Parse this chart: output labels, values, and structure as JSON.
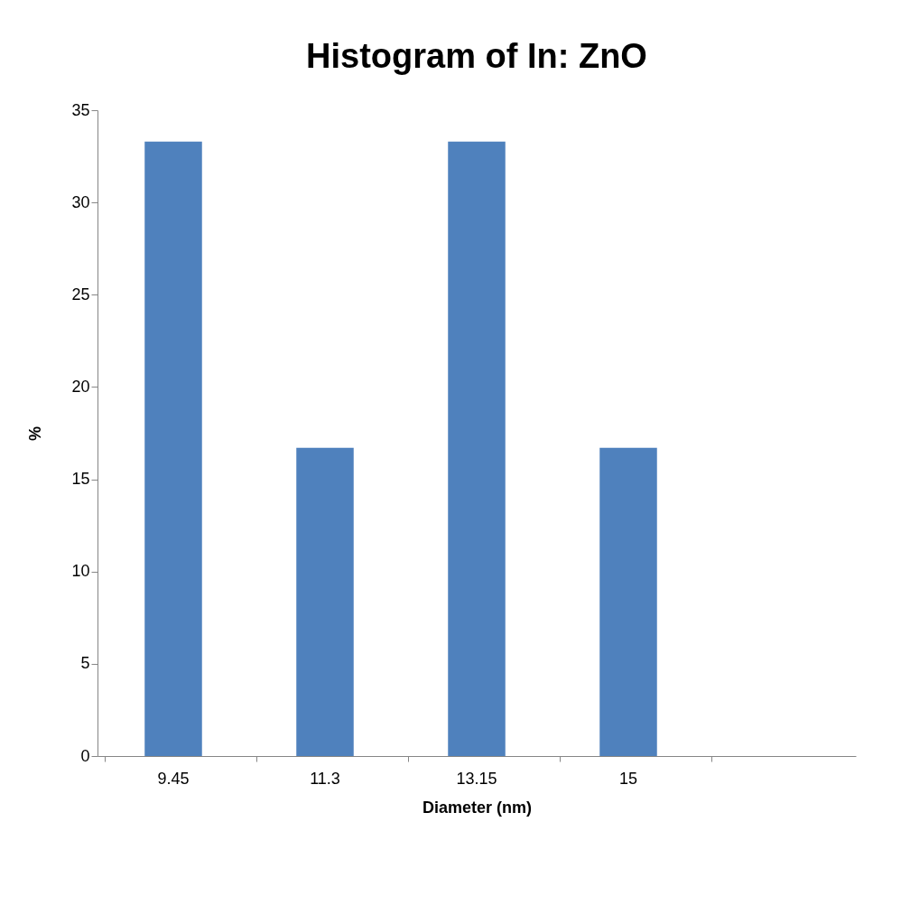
{
  "chart_data": {
    "type": "bar",
    "title": "Histogram of In: ZnO",
    "xlabel": "Diameter (nm)",
    "ylabel": "%",
    "categories": [
      "9.45",
      "11.3",
      "13.15",
      "15",
      null
    ],
    "values": [
      33.3,
      16.7,
      33.3,
      16.7,
      null
    ],
    "color": "#4f81bd",
    "ylim": [
      0,
      35
    ],
    "yticks": [
      0,
      5,
      10,
      15,
      20,
      25,
      30,
      35
    ],
    "grid": false
  }
}
